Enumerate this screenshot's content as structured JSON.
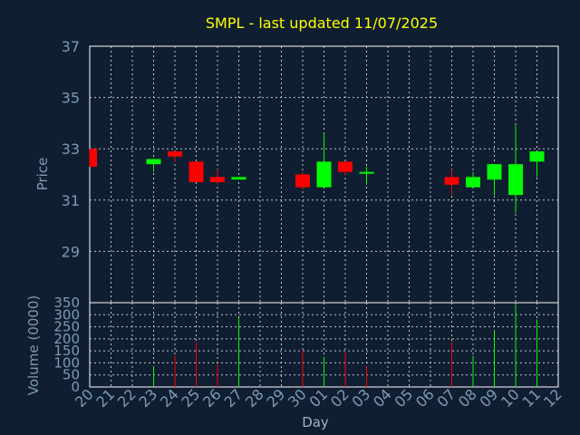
{
  "chart_data": {
    "type": "candlestick",
    "title": "SMPL - last updated 11/07/2025",
    "xlabel": "Day",
    "categories": [
      "20",
      "21",
      "22",
      "23",
      "24",
      "25",
      "26",
      "27",
      "28",
      "29",
      "30",
      "01",
      "02",
      "03",
      "04",
      "05",
      "06",
      "07",
      "08",
      "09",
      "10",
      "11",
      "12"
    ],
    "price_panel": {
      "ylabel": "Price",
      "ylim": [
        27,
        37
      ],
      "yticks": [
        29,
        31,
        33,
        35,
        37
      ],
      "grid": true,
      "candles": [
        {
          "day": "20",
          "open": 33.0,
          "high": 33.0,
          "low": 32.3,
          "close": 32.3
        },
        {
          "day": "23",
          "open": 32.4,
          "high": 32.6,
          "low": 32.1,
          "close": 32.6
        },
        {
          "day": "24",
          "open": 32.9,
          "high": 32.9,
          "low": 32.5,
          "close": 32.7
        },
        {
          "day": "25",
          "open": 32.5,
          "high": 32.5,
          "low": 31.7,
          "close": 31.7
        },
        {
          "day": "26",
          "open": 31.9,
          "high": 32.2,
          "low": 31.6,
          "close": 31.7
        },
        {
          "day": "27",
          "open": 31.8,
          "high": 31.9,
          "low": 31.8,
          "close": 31.9
        },
        {
          "day": "30",
          "open": 32.0,
          "high": 32.1,
          "low": 31.4,
          "close": 31.5
        },
        {
          "day": "01",
          "open": 31.5,
          "high": 33.6,
          "low": 31.5,
          "close": 32.5
        },
        {
          "day": "02",
          "open": 32.5,
          "high": 32.5,
          "low": 32.0,
          "close": 32.1
        },
        {
          "day": "03",
          "open": 32.1,
          "high": 32.3,
          "low": 31.6,
          "close": 32.1
        },
        {
          "day": "07",
          "open": 31.9,
          "high": 32.2,
          "low": 31.2,
          "close": 31.6
        },
        {
          "day": "08",
          "open": 31.5,
          "high": 32.1,
          "low": 31.5,
          "close": 31.9
        },
        {
          "day": "09",
          "open": 31.8,
          "high": 32.4,
          "low": 31.2,
          "close": 32.4
        },
        {
          "day": "10",
          "open": 31.2,
          "high": 33.9,
          "low": 30.5,
          "close": 32.4
        },
        {
          "day": "11",
          "open": 32.5,
          "high": 32.9,
          "low": 31.9,
          "close": 32.9
        }
      ]
    },
    "volume_panel": {
      "ylabel": "Volume (0000)",
      "ylim": [
        0,
        350
      ],
      "yticks": [
        0,
        50,
        100,
        150,
        200,
        250,
        300,
        350
      ],
      "grid": true,
      "bars": [
        {
          "day": "23",
          "value": 85,
          "color": "#00ff00"
        },
        {
          "day": "24",
          "value": 130,
          "color": "#ff0000"
        },
        {
          "day": "25",
          "value": 185,
          "color": "#ff0000"
        },
        {
          "day": "26",
          "value": 95,
          "color": "#ff0000"
        },
        {
          "day": "27",
          "value": 285,
          "color": "#00ff00"
        },
        {
          "day": "30",
          "value": 150,
          "color": "#ff0000"
        },
        {
          "day": "01",
          "value": 125,
          "color": "#00ff00"
        },
        {
          "day": "02",
          "value": 145,
          "color": "#ff0000"
        },
        {
          "day": "03",
          "value": 85,
          "color": "#ff0000"
        },
        {
          "day": "07",
          "value": 190,
          "color": "#ff0000"
        },
        {
          "day": "08",
          "value": 130,
          "color": "#00ff00"
        },
        {
          "day": "09",
          "value": 235,
          "color": "#00ff00"
        },
        {
          "day": "10",
          "value": 340,
          "color": "#00ff00"
        },
        {
          "day": "11",
          "value": 280,
          "color": "#00ff00"
        }
      ]
    },
    "colors": {
      "background": "#0f1e30",
      "frame": "#ffffff",
      "grid": "#bfc6d0",
      "title": "#ffff00",
      "labels": "#7d9ab8",
      "up": "#00ff00",
      "down": "#ff0000"
    }
  }
}
